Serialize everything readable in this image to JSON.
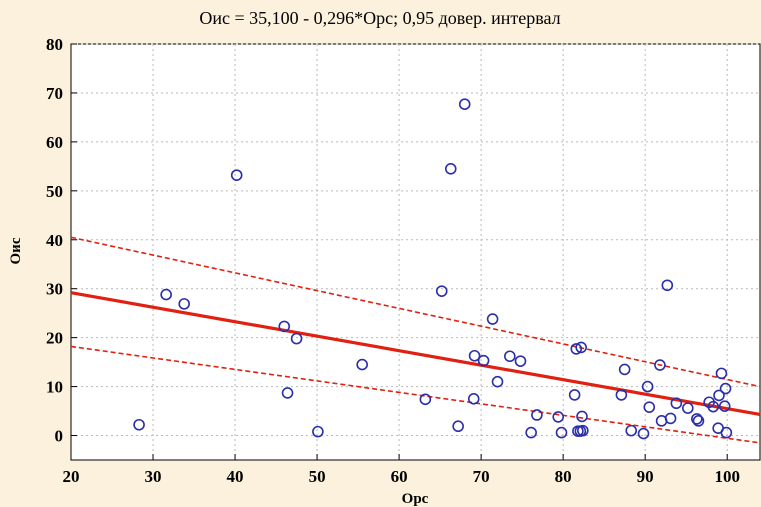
{
  "chart_data": {
    "type": "scatter",
    "title": "Оис = 35,100 - 0,296*Орс; 0,95 довер. интервал",
    "xlabel": "Орс",
    "ylabel": "Оис",
    "xlim": [
      20,
      104
    ],
    "ylim": [
      -5,
      80
    ],
    "xticks": [
      20,
      30,
      40,
      50,
      60,
      70,
      80,
      90,
      100
    ],
    "yticks": [
      0,
      10,
      20,
      30,
      40,
      50,
      60,
      70,
      80
    ],
    "grid": true,
    "colors": {
      "points": "#2b2fa8",
      "fit": "#e02010",
      "ci": "#e02010",
      "background": "#fbf1dc",
      "plot": "#ffffff"
    },
    "regression": {
      "intercept": 35.1,
      "slope": -0.296
    },
    "ci_upper": [
      [
        20,
        40.5
      ],
      [
        104,
        10.0
      ]
    ],
    "ci_lower": [
      [
        20,
        18.2
      ],
      [
        104,
        -1.5
      ]
    ],
    "points": [
      {
        "x": 28.3,
        "y": 2.2
      },
      {
        "x": 31.6,
        "y": 28.8
      },
      {
        "x": 33.8,
        "y": 26.9
      },
      {
        "x": 40.2,
        "y": 53.2
      },
      {
        "x": 46.0,
        "y": 22.3
      },
      {
        "x": 46.4,
        "y": 8.7
      },
      {
        "x": 47.5,
        "y": 19.8
      },
      {
        "x": 50.1,
        "y": 0.8
      },
      {
        "x": 55.5,
        "y": 14.5
      },
      {
        "x": 63.2,
        "y": 7.4
      },
      {
        "x": 65.2,
        "y": 29.5
      },
      {
        "x": 66.3,
        "y": 54.5
      },
      {
        "x": 67.2,
        "y": 1.9
      },
      {
        "x": 68.0,
        "y": 67.7
      },
      {
        "x": 69.1,
        "y": 7.5
      },
      {
        "x": 69.2,
        "y": 16.3
      },
      {
        "x": 70.3,
        "y": 15.3
      },
      {
        "x": 71.4,
        "y": 23.8
      },
      {
        "x": 72.0,
        "y": 11.0
      },
      {
        "x": 73.5,
        "y": 16.2
      },
      {
        "x": 74.8,
        "y": 15.2
      },
      {
        "x": 76.1,
        "y": 0.6
      },
      {
        "x": 76.8,
        "y": 4.2
      },
      {
        "x": 79.4,
        "y": 3.8
      },
      {
        "x": 79.8,
        "y": 0.6
      },
      {
        "x": 81.4,
        "y": 8.3
      },
      {
        "x": 81.6,
        "y": 17.7
      },
      {
        "x": 81.8,
        "y": 0.9
      },
      {
        "x": 82.1,
        "y": 0.9
      },
      {
        "x": 82.2,
        "y": 18.0
      },
      {
        "x": 82.3,
        "y": 3.9
      },
      {
        "x": 82.4,
        "y": 1.0
      },
      {
        "x": 87.1,
        "y": 8.3
      },
      {
        "x": 87.5,
        "y": 13.5
      },
      {
        "x": 88.3,
        "y": 1.0
      },
      {
        "x": 89.8,
        "y": 0.4
      },
      {
        "x": 90.3,
        "y": 10.0
      },
      {
        "x": 90.5,
        "y": 5.8
      },
      {
        "x": 91.8,
        "y": 14.4
      },
      {
        "x": 92.0,
        "y": 3.0
      },
      {
        "x": 92.7,
        "y": 30.7
      },
      {
        "x": 93.1,
        "y": 3.5
      },
      {
        "x": 93.8,
        "y": 6.6
      },
      {
        "x": 95.2,
        "y": 5.6
      },
      {
        "x": 96.3,
        "y": 3.4
      },
      {
        "x": 96.5,
        "y": 3.0
      },
      {
        "x": 97.8,
        "y": 6.8
      },
      {
        "x": 98.3,
        "y": 5.9
      },
      {
        "x": 98.9,
        "y": 1.5
      },
      {
        "x": 99.0,
        "y": 8.2
      },
      {
        "x": 99.3,
        "y": 12.7
      },
      {
        "x": 99.7,
        "y": 6.0
      },
      {
        "x": 99.8,
        "y": 9.6
      },
      {
        "x": 99.9,
        "y": 0.6
      }
    ]
  }
}
